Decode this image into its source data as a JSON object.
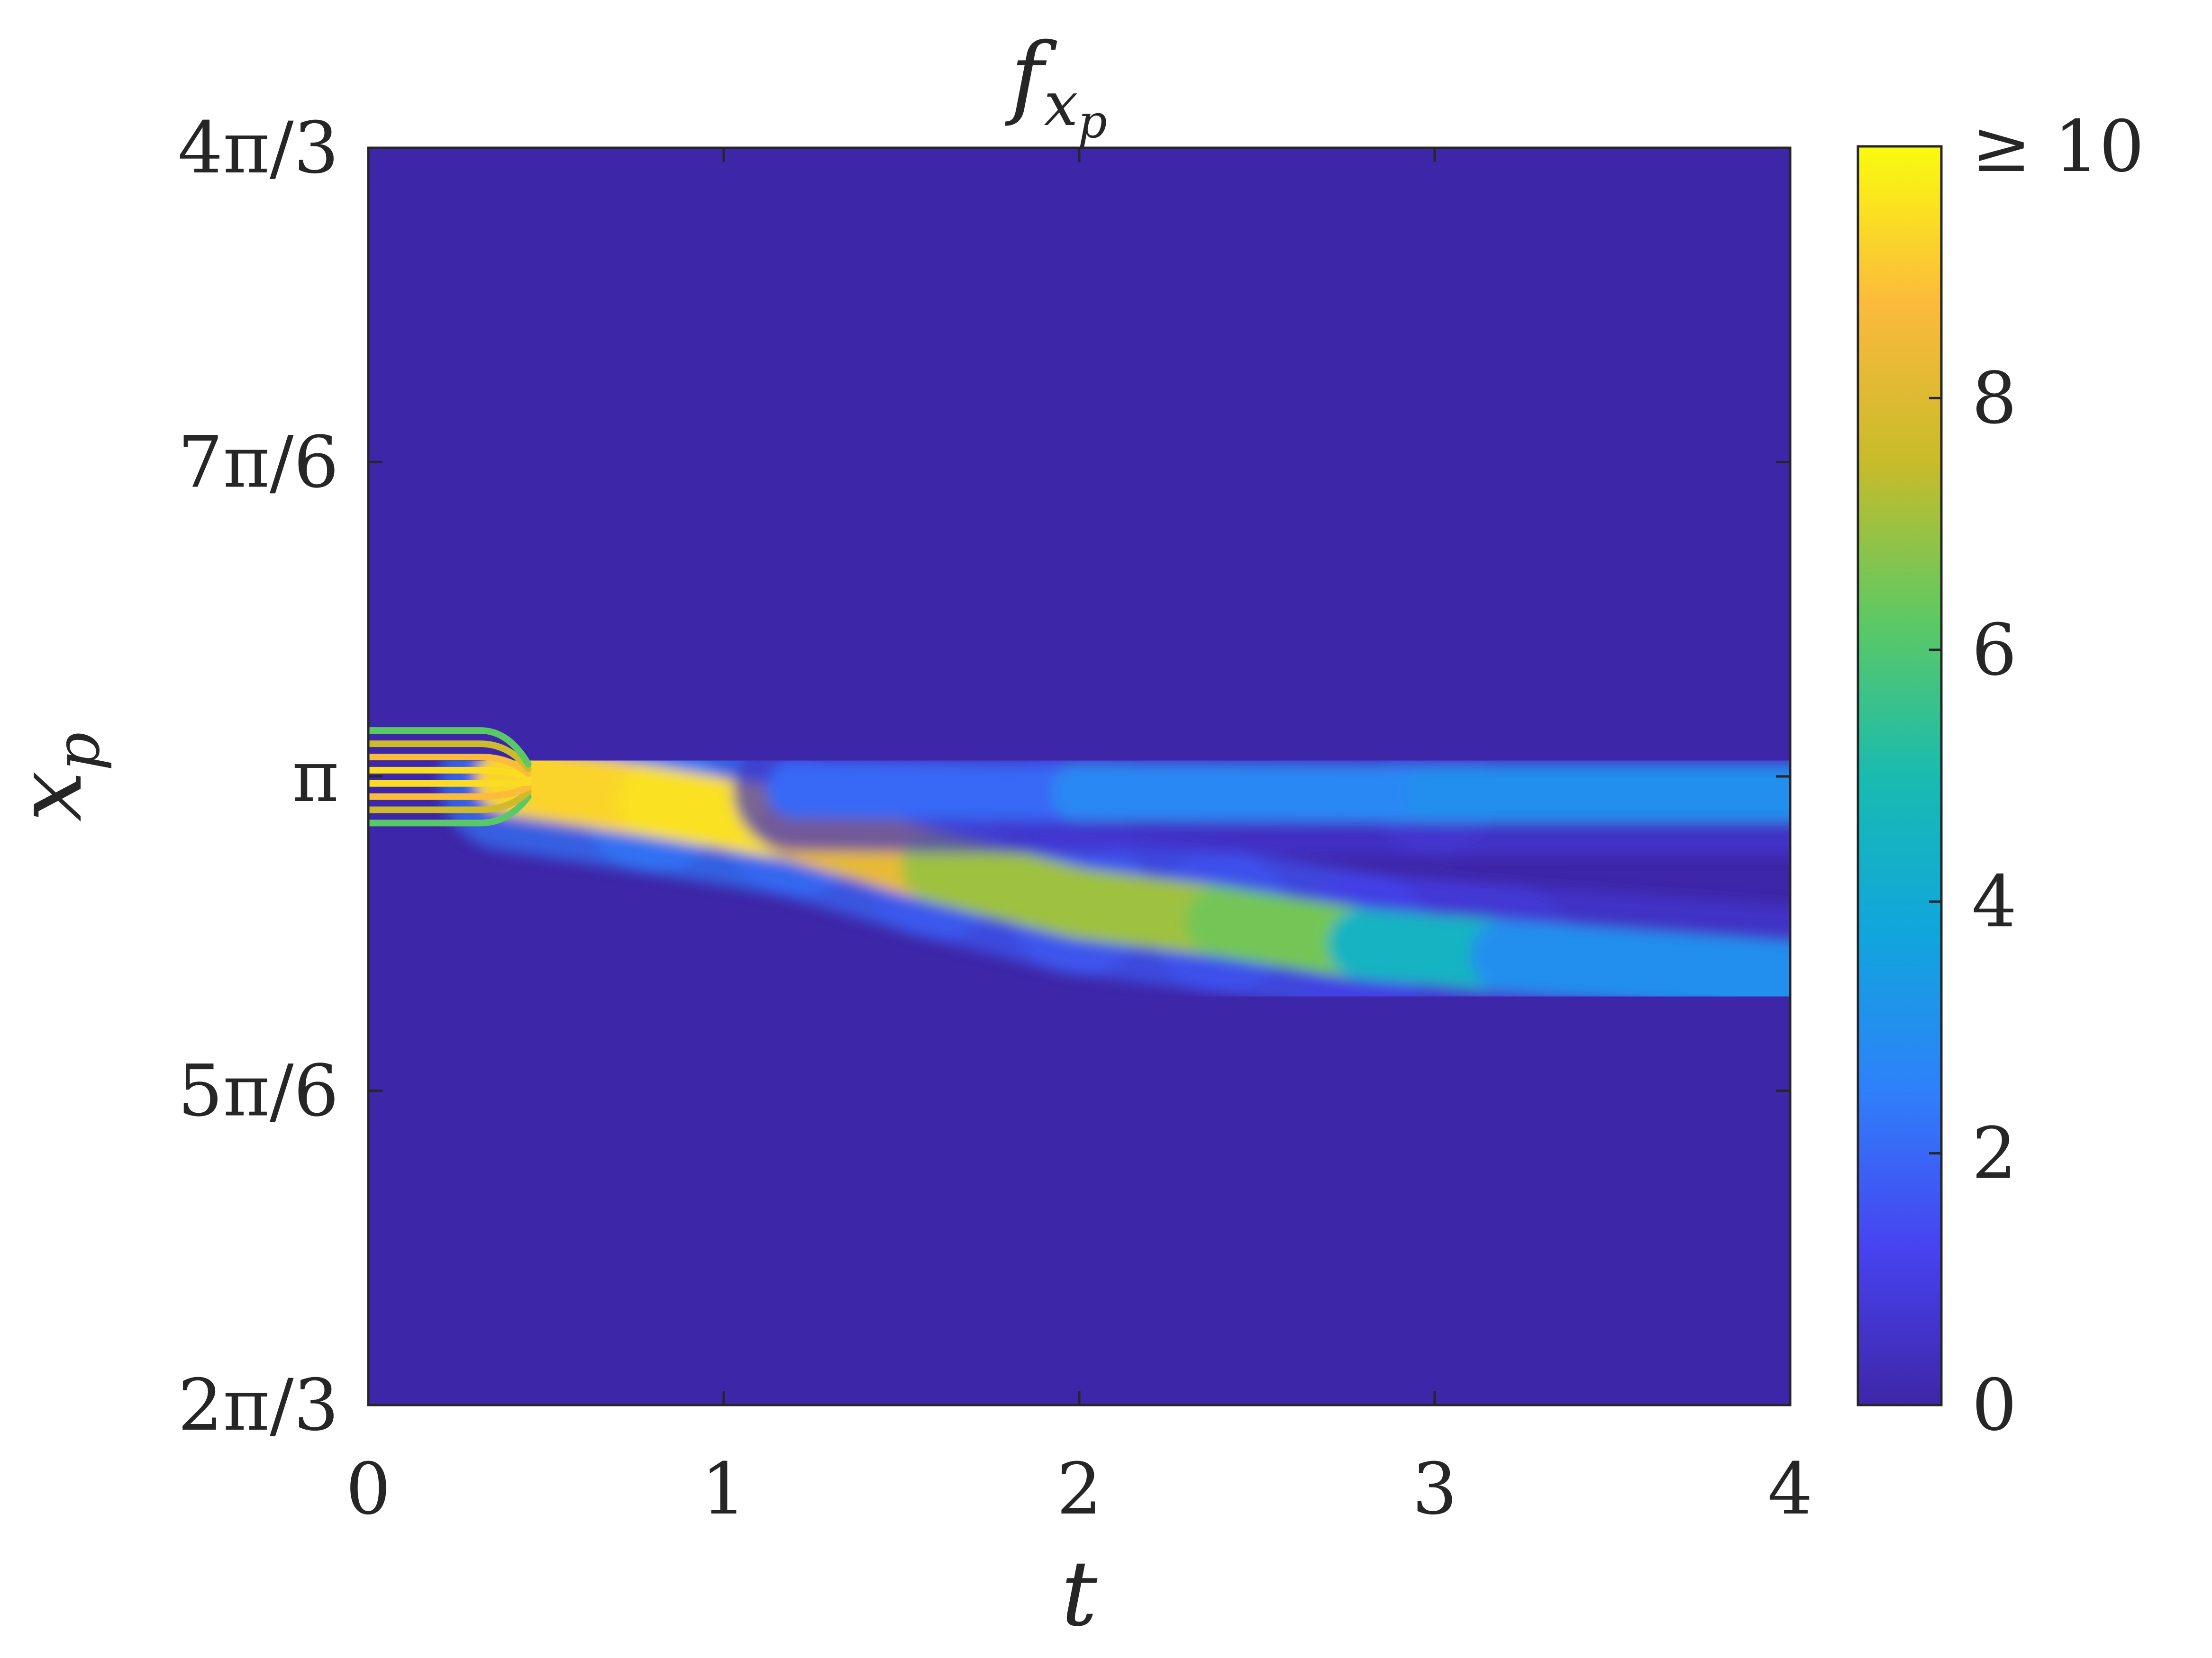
{
  "chart_data": {
    "type": "heatmap",
    "title": {
      "base": "f",
      "sub": "x",
      "subsub": "p"
    },
    "xlabel": "t",
    "ylabel": {
      "base": "x",
      "sub": "p"
    },
    "xlim": [
      0,
      4
    ],
    "ylim": [
      2.0944,
      4.1888
    ],
    "xticks": [
      {
        "value": 0,
        "label": "0"
      },
      {
        "value": 1,
        "label": "1"
      },
      {
        "value": 2,
        "label": "2"
      },
      {
        "value": 3,
        "label": "3"
      },
      {
        "value": 4,
        "label": "4"
      }
    ],
    "yticks": [
      {
        "value": 2.0944,
        "label": "2π/3"
      },
      {
        "value": 2.618,
        "label": "5π/6"
      },
      {
        "value": 3.1416,
        "label": "π"
      },
      {
        "value": 3.6652,
        "label": "7π/6"
      },
      {
        "value": 4.1888,
        "label": "4π/3"
      }
    ],
    "colorbar": {
      "clim": [
        0,
        10
      ],
      "ticks": [
        {
          "value": 0,
          "label": "0"
        },
        {
          "value": 2,
          "label": "2"
        },
        {
          "value": 4,
          "label": "4"
        },
        {
          "value": 6,
          "label": "6"
        },
        {
          "value": 8,
          "label": "8"
        },
        {
          "value": 10,
          "label": "≥ 10"
        }
      ],
      "colormap": "parula",
      "colormap_stops": [
        "#3e26a8",
        "#4743f0",
        "#2f80fa",
        "#10a6dd",
        "#19bbb0",
        "#5ec962",
        "#c9bb2a",
        "#fbba3c",
        "#f9fb0e"
      ]
    },
    "grid": false,
    "legend": "none",
    "features": [
      {
        "name": "initial bundle of strands",
        "t": [
          0,
          0.45
        ],
        "x_p_center": 3.141,
        "x_p_spread": 0.077,
        "peak": 9.5
      },
      {
        "name": "main descending ridge",
        "points": [
          {
            "t": 0.4,
            "x_p": 3.135,
            "value": 8.5
          },
          {
            "t": 0.8,
            "x_p": 3.1,
            "value": 10
          },
          {
            "t": 1.2,
            "x_p": 3.06,
            "value": 9
          },
          {
            "t": 1.6,
            "x_p": 2.99,
            "value": 7.5
          },
          {
            "t": 2.0,
            "x_p": 2.93,
            "value": 6.5
          },
          {
            "t": 2.4,
            "x_p": 2.9,
            "value": 7.5
          },
          {
            "t": 2.8,
            "x_p": 2.862,
            "value": 5.5
          },
          {
            "t": 3.2,
            "x_p": 2.843,
            "value": 3.5
          },
          {
            "t": 4.0,
            "x_p": 2.808,
            "value": 2.5
          }
        ]
      },
      {
        "name": "upper branch",
        "points": [
          {
            "t": 1.2,
            "x_p": 3.12,
            "value": 1.5
          },
          {
            "t": 2.0,
            "x_p": 3.115,
            "value": 2.5
          },
          {
            "t": 3.0,
            "x_p": 3.112,
            "value": 3.0
          },
          {
            "t": 4.0,
            "x_p": 3.112,
            "value": 3.0
          }
        ]
      }
    ]
  }
}
